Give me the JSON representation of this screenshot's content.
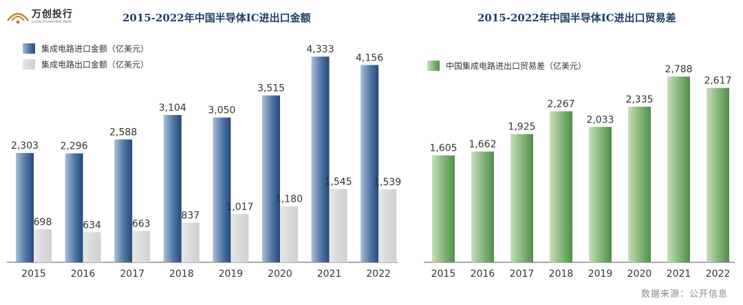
{
  "brand": {
    "name": "万创投行",
    "tagline": "Univo Investment Bank"
  },
  "source_note": "数据来源：公开信息",
  "colors": {
    "import_bar": "#2f5b8c",
    "export_bar": "#d9d9db",
    "balance_bar": "#5e9a57",
    "title": "#1d3f66"
  },
  "chart_data": [
    {
      "type": "bar",
      "title": "2015-2022年中国半导体IC进出口金额",
      "categories": [
        "2015",
        "2016",
        "2017",
        "2018",
        "2019",
        "2020",
        "2021",
        "2022"
      ],
      "series": [
        {
          "name": "集成电路进口金额（亿美元）",
          "values": [
            2303,
            2296,
            2588,
            3104,
            3050,
            3515,
            4333,
            4156
          ],
          "labels": [
            "2,303",
            "2,296",
            "2,588",
            "3,104",
            "3,050",
            "3,515",
            "4,333",
            "4,156"
          ]
        },
        {
          "name": "集成电路出口金额（亿美元）",
          "values": [
            698,
            634,
            663,
            837,
            1017,
            1180,
            1545,
            1539
          ],
          "labels": [
            "698",
            "634",
            "663",
            "837",
            "1,017",
            "1,180",
            "1,545",
            "1,539"
          ]
        }
      ],
      "ylim": [
        0,
        4800
      ],
      "legend": "top-left",
      "grid": false
    },
    {
      "type": "bar",
      "title": "2015-2022年中国半导体IC进出口贸易差",
      "categories": [
        "2015",
        "2016",
        "2017",
        "2018",
        "2019",
        "2020",
        "2021",
        "2022"
      ],
      "series": [
        {
          "name": "中国集成电路进出口贸易差（亿美元）",
          "values": [
            1605,
            1662,
            1925,
            2267,
            2033,
            2335,
            2788,
            2617
          ],
          "labels": [
            "1,605",
            "1,662",
            "1,925",
            "2,267",
            "2,033",
            "2,335",
            "2,788",
            "2,617"
          ]
        }
      ],
      "ylim": [
        0,
        3100
      ],
      "legend": "top-left",
      "grid": false
    }
  ]
}
